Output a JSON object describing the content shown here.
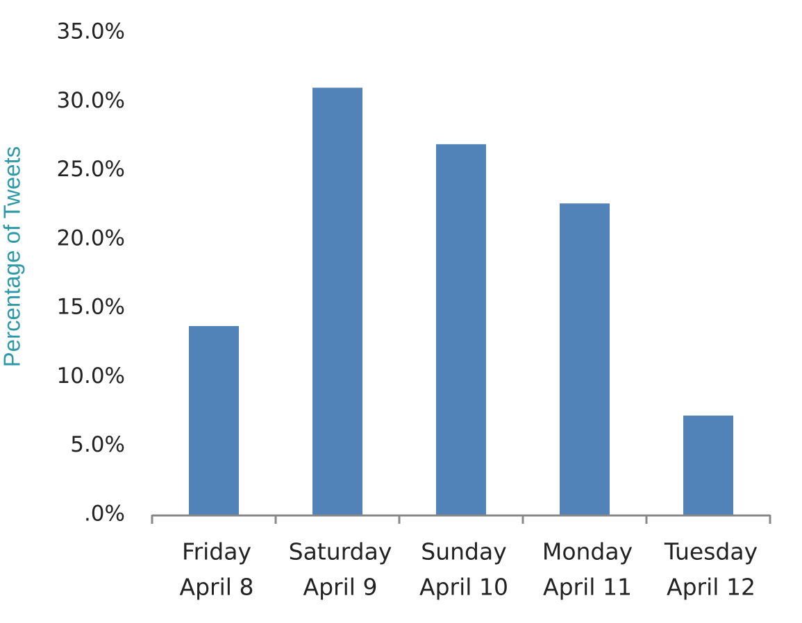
{
  "chart_data": {
    "type": "bar",
    "y_label": "Percentage of Tweets",
    "categories": [
      [
        "Friday",
        "April 8"
      ],
      [
        "Saturday",
        "April 9"
      ],
      [
        "Sunday",
        "April 10"
      ],
      [
        "Monday",
        "April 11"
      ],
      [
        "Tuesday",
        "April 12"
      ]
    ],
    "values": [
      13.7,
      31.0,
      26.9,
      22.6,
      7.2
    ],
    "color": "#5283b8",
    "ylim": [
      0,
      35
    ],
    "yticks": [
      {
        "value": 0,
        "label": ".0%"
      },
      {
        "value": 5,
        "label": "5.0%"
      },
      {
        "value": 10,
        "label": "10.0%"
      },
      {
        "value": 15,
        "label": "15.0%"
      },
      {
        "value": 20,
        "label": "20.0%"
      },
      {
        "value": 25,
        "label": "25.0%"
      },
      {
        "value": 30,
        "label": "30.0%"
      },
      {
        "value": 35,
        "label": "35.0%"
      }
    ],
    "grid": false
  }
}
